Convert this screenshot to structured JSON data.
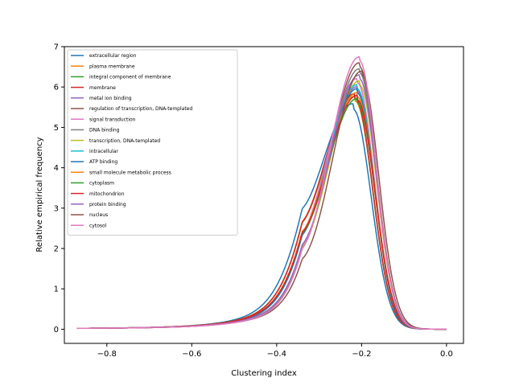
{
  "chart_data": {
    "type": "line",
    "title": "",
    "xlabel": "Clustering index",
    "ylabel": "Relative empirical frequency",
    "xlim": [
      -0.9,
      0.04
    ],
    "ylim": [
      -0.35,
      7.0
    ],
    "xticks": [
      -0.8,
      -0.6,
      -0.4,
      -0.2,
      0.0
    ],
    "xtick_labels": [
      "−0.8",
      "−0.6",
      "−0.4",
      "−0.2",
      "0.0"
    ],
    "yticks": [
      0,
      1,
      2,
      3,
      4,
      5,
      6,
      7
    ],
    "ytick_labels": [
      "0",
      "1",
      "2",
      "3",
      "4",
      "5",
      "6",
      "7"
    ],
    "grid": false,
    "legend_position": "top-left",
    "x_start": -0.87,
    "series": [
      {
        "name": "extracellular region",
        "color": "#1f77b4",
        "peak_x": -0.22,
        "peak_y": 5.45,
        "left_width": 0.082,
        "right_width": 0.042,
        "tail": 0.55
      },
      {
        "name": "plasma membrane",
        "color": "#ff7f0e",
        "peak_x": -0.215,
        "peak_y": 5.65,
        "left_width": 0.079,
        "right_width": 0.041,
        "tail": 0.5
      },
      {
        "name": "integral component of membrane",
        "color": "#2ca02c",
        "peak_x": -0.215,
        "peak_y": 5.7,
        "left_width": 0.079,
        "right_width": 0.041,
        "tail": 0.5
      },
      {
        "name": "membrane",
        "color": "#d62728",
        "peak_x": -0.215,
        "peak_y": 5.72,
        "left_width": 0.079,
        "right_width": 0.041,
        "tail": 0.5
      },
      {
        "name": "metal ion binding",
        "color": "#9467bd",
        "peak_x": -0.21,
        "peak_y": 5.9,
        "left_width": 0.077,
        "right_width": 0.04,
        "tail": 0.45
      },
      {
        "name": "regulation of transcription, DNA-templated",
        "color": "#8c564b",
        "peak_x": -0.205,
        "peak_y": 6.5,
        "left_width": 0.073,
        "right_width": 0.04,
        "tail": 0.4
      },
      {
        "name": "signal transduction",
        "color": "#e377c2",
        "peak_x": -0.21,
        "peak_y": 6.1,
        "left_width": 0.077,
        "right_width": 0.04,
        "tail": 0.45
      },
      {
        "name": "DNA binding",
        "color": "#7f7f7f",
        "peak_x": -0.205,
        "peak_y": 6.35,
        "left_width": 0.074,
        "right_width": 0.04,
        "tail": 0.4
      },
      {
        "name": "transcription, DNA-templated",
        "color": "#bcbd22",
        "peak_x": -0.205,
        "peak_y": 6.05,
        "left_width": 0.075,
        "right_width": 0.04,
        "tail": 0.42
      },
      {
        "name": "intracellular",
        "color": "#17becf",
        "peak_x": -0.21,
        "peak_y": 5.95,
        "left_width": 0.077,
        "right_width": 0.04,
        "tail": 0.45
      },
      {
        "name": "ATP binding",
        "color": "#1f77b4",
        "peak_x": -0.21,
        "peak_y": 5.85,
        "left_width": 0.077,
        "right_width": 0.04,
        "tail": 0.45
      },
      {
        "name": "small molecule metabolic process",
        "color": "#ff7f0e",
        "peak_x": -0.21,
        "peak_y": 5.75,
        "left_width": 0.078,
        "right_width": 0.041,
        "tail": 0.48
      },
      {
        "name": "cytoplasm",
        "color": "#2ca02c",
        "peak_x": -0.21,
        "peak_y": 5.6,
        "left_width": 0.078,
        "right_width": 0.041,
        "tail": 0.48
      },
      {
        "name": "mitochondrion",
        "color": "#d62728",
        "peak_x": -0.21,
        "peak_y": 5.68,
        "left_width": 0.078,
        "right_width": 0.041,
        "tail": 0.48
      },
      {
        "name": "protein binding",
        "color": "#9467bd",
        "peak_x": -0.205,
        "peak_y": 6.2,
        "left_width": 0.075,
        "right_width": 0.04,
        "tail": 0.42
      },
      {
        "name": "nucleus",
        "color": "#8c564b",
        "peak_x": -0.2,
        "peak_y": 6.3,
        "left_width": 0.072,
        "right_width": 0.04,
        "tail": 0.38
      },
      {
        "name": "cytosol",
        "color": "#e377c2",
        "peak_x": -0.205,
        "peak_y": 6.65,
        "left_width": 0.073,
        "right_width": 0.039,
        "tail": 0.38
      }
    ]
  }
}
